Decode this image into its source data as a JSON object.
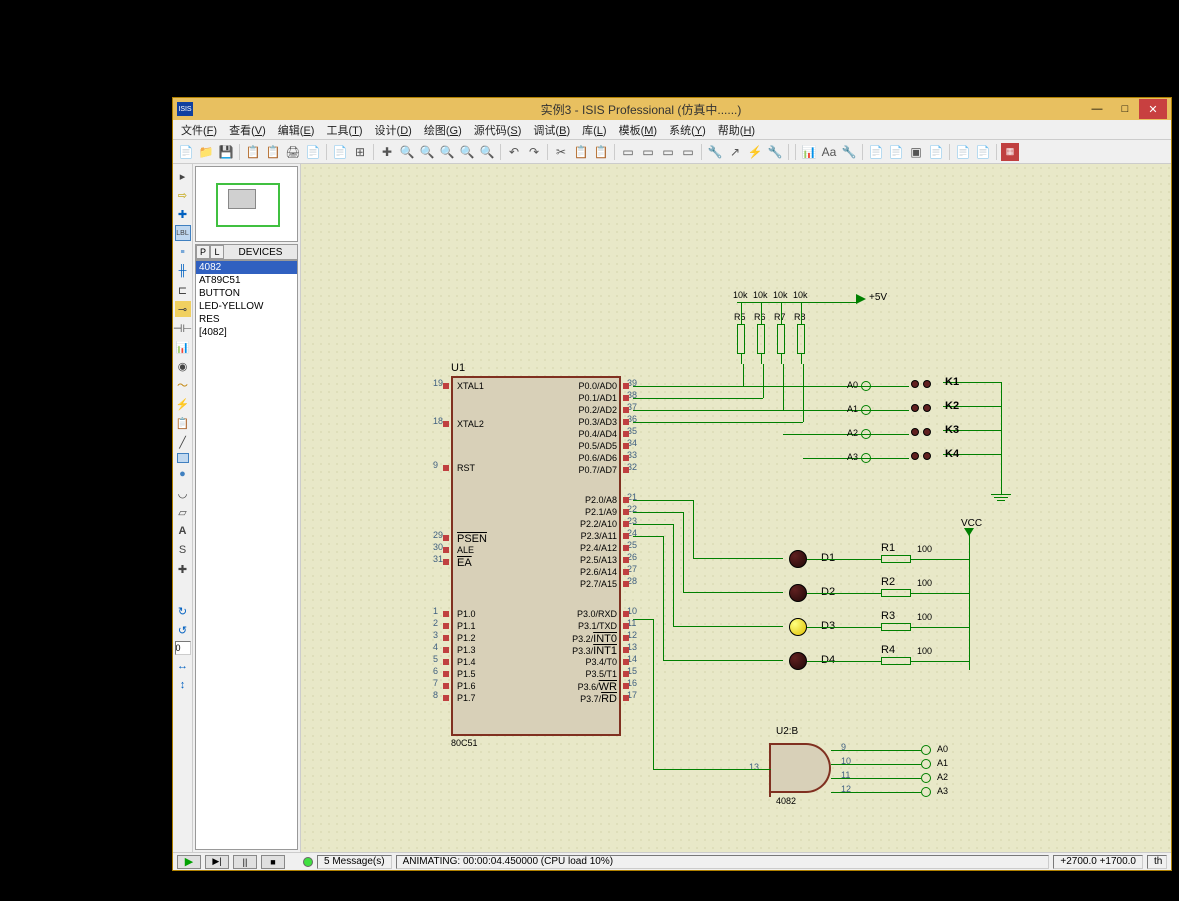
{
  "window": {
    "title": "实例3 - ISIS Professional (仿真中......)",
    "icon_text": "ISIS"
  },
  "menu": {
    "items": [
      "文件(F)",
      "查看(V)",
      "编辑(E)",
      "工具(T)",
      "设计(D)",
      "绘图(G)",
      "源代码(S)",
      "调试(B)",
      "库(L)",
      "模板(M)",
      "系统(Y)",
      "帮助(H)"
    ]
  },
  "devices": {
    "header": "DEVICES",
    "p_btn": "P",
    "l_btn": "L",
    "items": [
      "4082",
      "AT89C51",
      "BUTTON",
      "LED-YELLOW",
      "RES",
      "[4082]"
    ],
    "selected": 0
  },
  "toolbar": {
    "icons": [
      "📄",
      "📁",
      "💾",
      "",
      "📋",
      "📋",
      "🖨",
      "📄",
      "",
      "📄",
      "⊞",
      "",
      "✚",
      "🔍",
      "🔍",
      "🔍",
      "🔍",
      "🔍",
      "",
      "↶",
      "↷",
      "",
      "✂",
      "📋",
      "📋",
      "",
      "▭",
      "▭",
      "▭",
      "▭",
      "",
      "🔧",
      "↗",
      "⚡",
      "🔧",
      "",
      "",
      "📊",
      "Aa",
      "🔧",
      "",
      "📄",
      "📄",
      "▣",
      "📄",
      "",
      "📄",
      "📄",
      ""
    ]
  },
  "left_tools": {
    "coord_input": "0"
  },
  "schematic": {
    "u1": {
      "ref": "U1",
      "model": "80C51",
      "left_pins": [
        {
          "num": "19",
          "name": "XTAL1"
        },
        {
          "num": "18",
          "name": "XTAL2"
        },
        {
          "num": "9",
          "name": "RST"
        },
        {
          "num": "29",
          "name": "PSEN",
          "ov": true
        },
        {
          "num": "30",
          "name": "ALE"
        },
        {
          "num": "31",
          "name": "EA",
          "ov": true
        },
        {
          "num": "1",
          "name": "P1.0"
        },
        {
          "num": "2",
          "name": "P1.1"
        },
        {
          "num": "3",
          "name": "P1.2"
        },
        {
          "num": "4",
          "name": "P1.3"
        },
        {
          "num": "5",
          "name": "P1.4"
        },
        {
          "num": "6",
          "name": "P1.5"
        },
        {
          "num": "7",
          "name": "P1.6"
        },
        {
          "num": "8",
          "name": "P1.7"
        }
      ],
      "right_pins": [
        {
          "num": "39",
          "name": "P0.0/AD0"
        },
        {
          "num": "38",
          "name": "P0.1/AD1"
        },
        {
          "num": "37",
          "name": "P0.2/AD2"
        },
        {
          "num": "36",
          "name": "P0.3/AD3"
        },
        {
          "num": "35",
          "name": "P0.4/AD4"
        },
        {
          "num": "34",
          "name": "P0.5/AD5"
        },
        {
          "num": "33",
          "name": "P0.6/AD6"
        },
        {
          "num": "32",
          "name": "P0.7/AD7"
        },
        {
          "num": "21",
          "name": "P2.0/A8"
        },
        {
          "num": "22",
          "name": "P2.1/A9"
        },
        {
          "num": "23",
          "name": "P2.2/A10"
        },
        {
          "num": "24",
          "name": "P2.3/A11"
        },
        {
          "num": "25",
          "name": "P2.4/A12"
        },
        {
          "num": "26",
          "name": "P2.5/A13"
        },
        {
          "num": "27",
          "name": "P2.6/A14"
        },
        {
          "num": "28",
          "name": "P2.7/A15"
        },
        {
          "num": "10",
          "name": "P3.0/RXD"
        },
        {
          "num": "11",
          "name": "P3.1/TXD"
        },
        {
          "num": "12",
          "name": "P3.2/INT0",
          "ov": "INT0"
        },
        {
          "num": "13",
          "name": "P3.3/INT1",
          "ov": "INT1"
        },
        {
          "num": "14",
          "name": "P3.4/T0"
        },
        {
          "num": "15",
          "name": "P3.5/T1"
        },
        {
          "num": "16",
          "name": "P3.6/WR",
          "ov": "WR"
        },
        {
          "num": "17",
          "name": "P3.7/RD",
          "ov": "RD"
        }
      ]
    },
    "pullups": {
      "refs": [
        "R5",
        "R6",
        "R7",
        "R8"
      ],
      "value": "10k"
    },
    "power_5v": "+5V",
    "vcc": "VCC",
    "buttons": [
      "K1",
      "K2",
      "K3",
      "K4"
    ],
    "button_nets": [
      "A0",
      "A1",
      "A2",
      "A3"
    ],
    "leds": [
      {
        "ref": "D1",
        "lit": false
      },
      {
        "ref": "D2",
        "lit": false
      },
      {
        "ref": "D3",
        "lit": true
      },
      {
        "ref": "D4",
        "lit": false
      }
    ],
    "led_res": [
      {
        "ref": "R1",
        "val": "100"
      },
      {
        "ref": "R2",
        "val": "100"
      },
      {
        "ref": "R3",
        "val": "100"
      },
      {
        "ref": "R4",
        "val": "100"
      }
    ],
    "gate": {
      "ref": "U2:B",
      "model": "4082",
      "out_pin": "13",
      "in_pins": [
        "9",
        "10",
        "11",
        "12"
      ],
      "in_nets": [
        "A0",
        "A1",
        "A2",
        "A3"
      ]
    }
  },
  "status": {
    "messages": "5 Message(s)",
    "sim_status": "ANIMATING: 00:00:04.450000 (CPU load 10%)",
    "coords": "+2700.0   +1700.0",
    "units": "th"
  },
  "colors": {
    "canvas_bg": "#e8e8c8",
    "wire": "#008000",
    "chip_border": "#803020",
    "chip_fill": "#d8d0b8",
    "titlebar": "#e8c060"
  }
}
